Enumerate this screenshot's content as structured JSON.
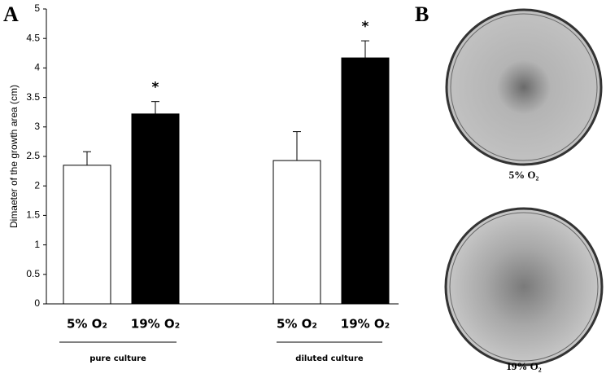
{
  "chart_data": {
    "type": "bar",
    "panel_label": "A",
    "y_label": "Dimaeter of the growth area (cm)",
    "categories": [
      "5% O₂",
      "19% O₂",
      "5% O₂",
      "19% O₂"
    ],
    "values": [
      2.35,
      3.22,
      2.43,
      4.17
    ],
    "errors": [
      0.23,
      0.21,
      0.49,
      0.29
    ],
    "colors": [
      "#ffffff",
      "#000000",
      "#ffffff",
      "#000000"
    ],
    "value_annotations": [
      null,
      "*",
      null,
      "*"
    ],
    "groups": [
      "pure culture",
      "diluted culture"
    ],
    "ylim": [
      0,
      5
    ],
    "yticks": [
      0,
      0.5,
      1,
      1.5,
      2,
      2.5,
      3,
      3.5,
      4,
      4.5,
      5
    ]
  },
  "panel_b": {
    "label": "B",
    "plates": [
      "5% O₂",
      "19% O₂"
    ]
  }
}
